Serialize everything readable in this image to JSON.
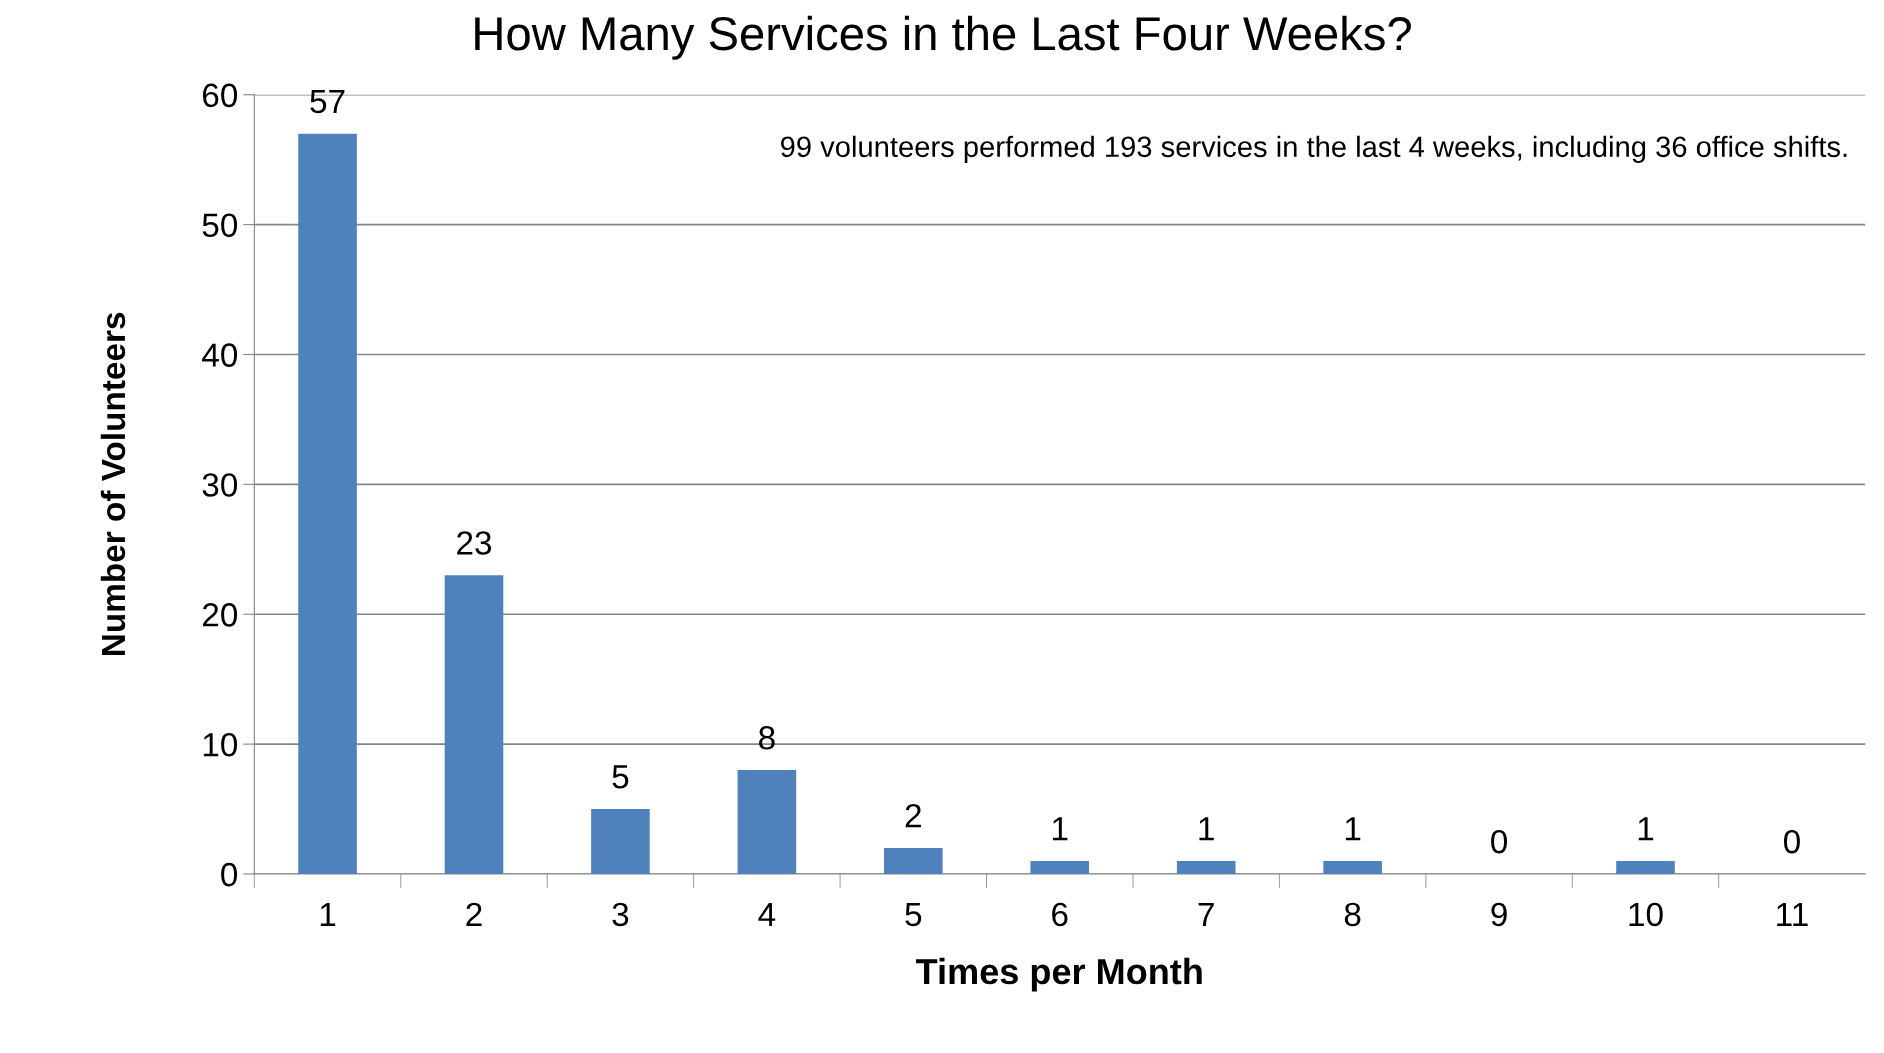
{
  "chart_data": {
    "type": "bar",
    "title": "How Many Services in the Last Four Weeks?",
    "xlabel": "Times per Month",
    "ylabel": "Number of Volunteers",
    "categories": [
      "1",
      "2",
      "3",
      "4",
      "5",
      "6",
      "7",
      "8",
      "9",
      "10",
      "11"
    ],
    "values": [
      57,
      23,
      5,
      8,
      2,
      1,
      1,
      1,
      0,
      1,
      0
    ],
    "color": "#4f81bd",
    "ylim": [
      0,
      60
    ],
    "yticks": [
      0,
      10,
      20,
      30,
      40,
      50,
      60
    ],
    "grid": "y",
    "data_labels": true,
    "legend": false,
    "annotations": [
      "99 volunteers performed 193 services in the last 4 weeks, including 36 office shifts."
    ]
  }
}
